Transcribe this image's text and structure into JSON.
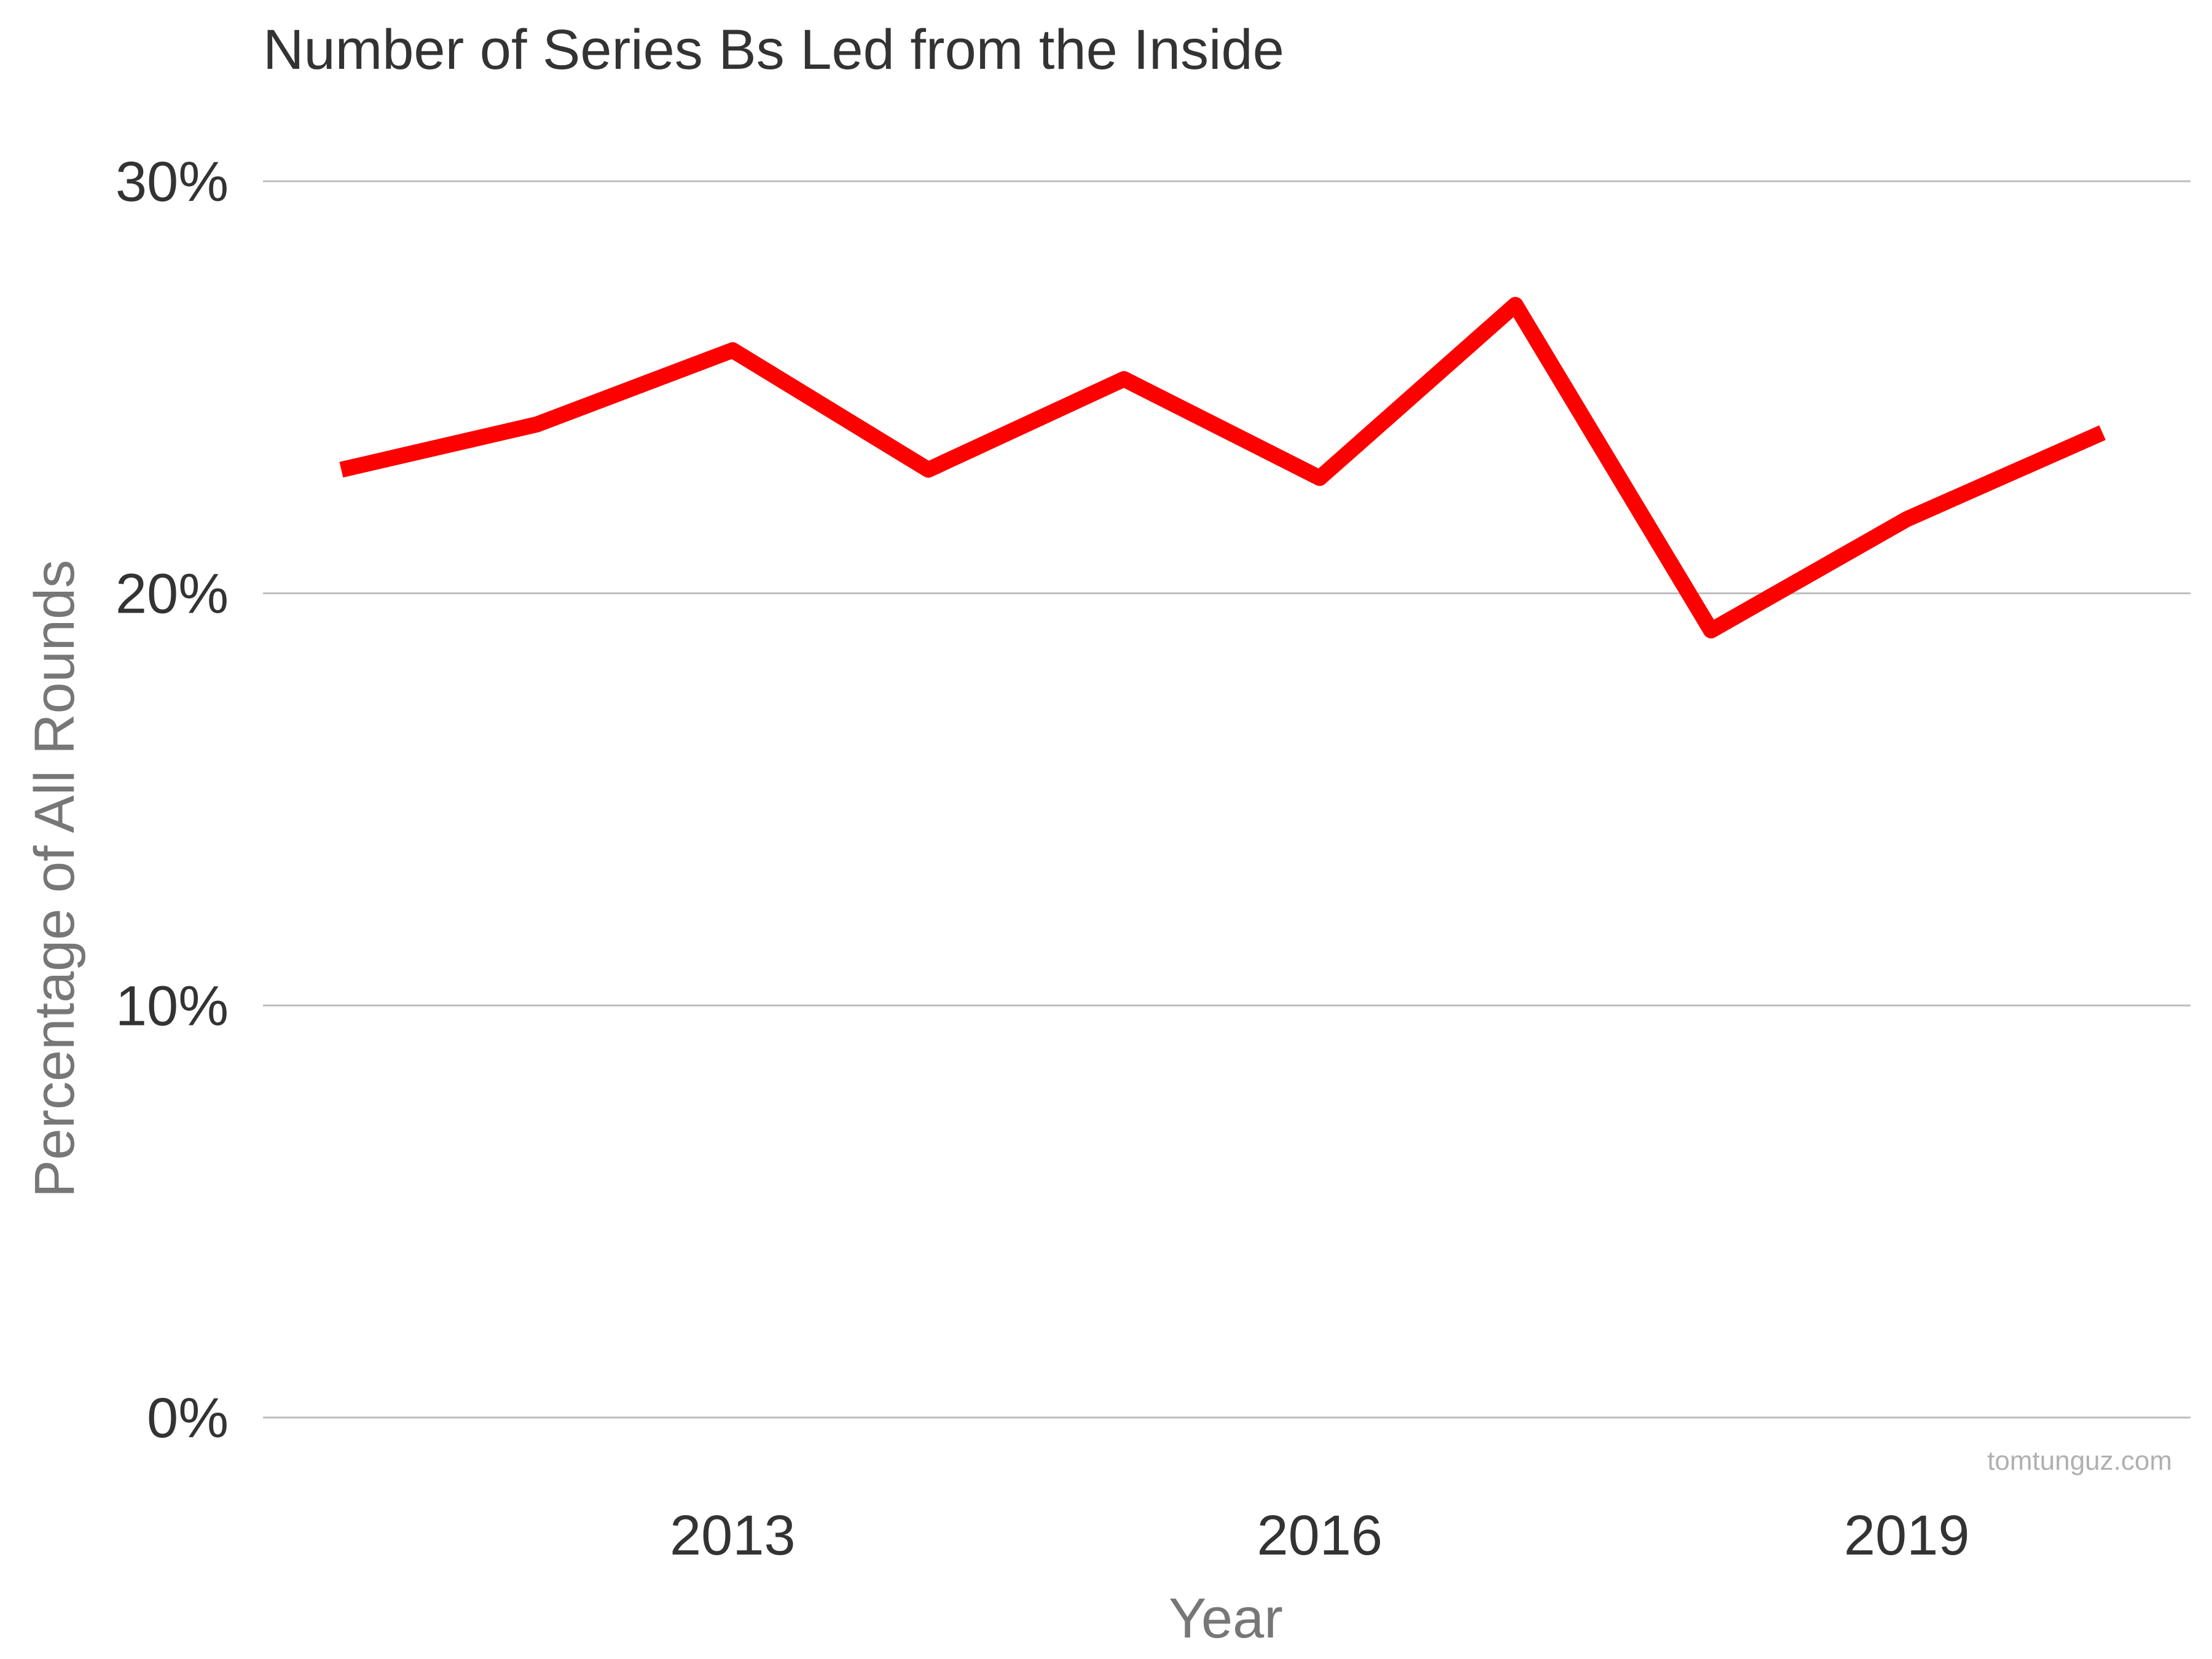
{
  "chart_data": {
    "type": "line",
    "title": "Number of Series Bs Led from the Inside",
    "xlabel": "Year",
    "ylabel": "Percentage of All Rounds",
    "x": [
      2011,
      2012,
      2013,
      2014,
      2015,
      2016,
      2017,
      2018,
      2019,
      2020
    ],
    "series": [
      {
        "values": [
          23.0,
          24.1,
          25.9,
          23.0,
          25.2,
          22.8,
          27.0,
          19.1,
          21.8,
          23.9
        ]
      }
    ],
    "ylim": [
      0,
      30
    ],
    "y_ticks": [
      0,
      10,
      20,
      30
    ],
    "y_tick_labels": [
      "0%",
      "10%",
      "20%",
      "30%"
    ],
    "x_ticks": [
      2013,
      2016,
      2019
    ],
    "x_tick_labels": [
      "2013",
      "2016",
      "2019"
    ],
    "line_color": "#ff0000",
    "grid": "horizontal",
    "legend": "none",
    "credit": "tomtunguz.com"
  }
}
